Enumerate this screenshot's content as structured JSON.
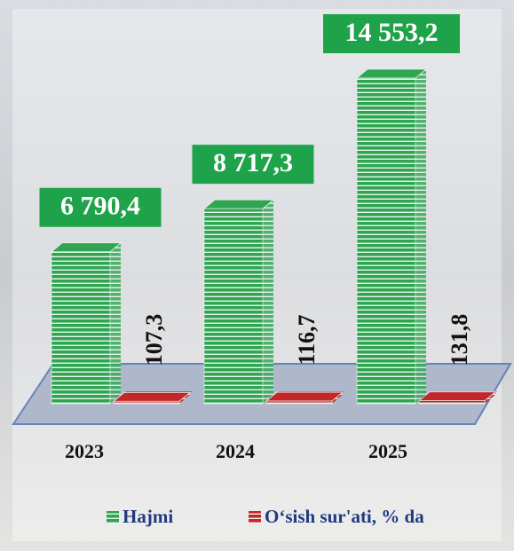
{
  "chart_data": {
    "type": "bar3d",
    "categories": [
      "2023",
      "2024",
      "2025"
    ],
    "series": [
      {
        "name": "Hajmi",
        "color": "#2fa552",
        "values": [
          6790.4,
          8717.3,
          14553.2
        ],
        "value_labels": [
          "6 790,4",
          "8 717,3",
          "14 553,2"
        ]
      },
      {
        "name": "O‘sish sur'ati, % da",
        "color": "#c3262b",
        "values": [
          107.3,
          116.7,
          131.8
        ],
        "value_labels": [
          "107,3",
          "116,7",
          "131,8"
        ]
      }
    ]
  }
}
